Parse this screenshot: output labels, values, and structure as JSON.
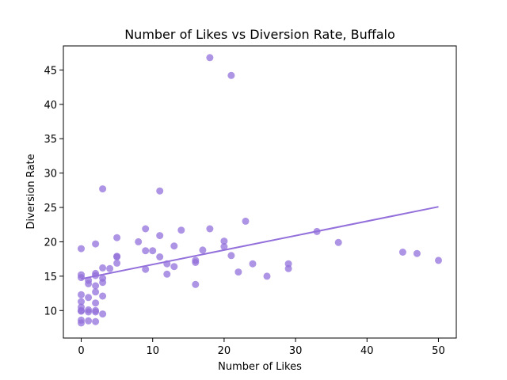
{
  "chart_data": {
    "type": "scatter",
    "title": "Number of Likes vs Diversion Rate, Buffalo",
    "xlabel": "Number of Likes",
    "ylabel": "Diversion Rate",
    "xlim": [
      -2.5,
      52.5
    ],
    "ylim": [
      6.0,
      48.5
    ],
    "xticks": [
      0,
      10,
      20,
      30,
      40,
      50
    ],
    "yticks": [
      10,
      15,
      20,
      25,
      30,
      35,
      40,
      45
    ],
    "grid": false,
    "legend": "none",
    "point_color": "#9370DB",
    "line_color": "#9370DB",
    "points": [
      {
        "x": 0,
        "y": 19.0
      },
      {
        "x": 0,
        "y": 15.2
      },
      {
        "x": 0,
        "y": 14.8
      },
      {
        "x": 0,
        "y": 12.3
      },
      {
        "x": 0,
        "y": 11.3
      },
      {
        "x": 0,
        "y": 10.5
      },
      {
        "x": 0,
        "y": 10.0
      },
      {
        "x": 0,
        "y": 9.9
      },
      {
        "x": 0,
        "y": 8.6
      },
      {
        "x": 0,
        "y": 8.2
      },
      {
        "x": 1,
        "y": 14.4
      },
      {
        "x": 1,
        "y": 13.9
      },
      {
        "x": 1,
        "y": 11.9
      },
      {
        "x": 1,
        "y": 10.1
      },
      {
        "x": 1,
        "y": 9.8
      },
      {
        "x": 1,
        "y": 8.5
      },
      {
        "x": 2,
        "y": 19.7
      },
      {
        "x": 2,
        "y": 15.4
      },
      {
        "x": 2,
        "y": 15.1
      },
      {
        "x": 2,
        "y": 13.6
      },
      {
        "x": 2,
        "y": 12.7
      },
      {
        "x": 2,
        "y": 11.1
      },
      {
        "x": 2,
        "y": 10.0
      },
      {
        "x": 2,
        "y": 9.8
      },
      {
        "x": 2,
        "y": 8.4
      },
      {
        "x": 3,
        "y": 27.7
      },
      {
        "x": 3,
        "y": 16.2
      },
      {
        "x": 3,
        "y": 14.7
      },
      {
        "x": 3,
        "y": 14.1
      },
      {
        "x": 3,
        "y": 12.1
      },
      {
        "x": 3,
        "y": 9.5
      },
      {
        "x": 4,
        "y": 16.1
      },
      {
        "x": 5,
        "y": 20.6
      },
      {
        "x": 5,
        "y": 17.9
      },
      {
        "x": 5,
        "y": 17.8
      },
      {
        "x": 5,
        "y": 16.9
      },
      {
        "x": 8,
        "y": 20.0
      },
      {
        "x": 9,
        "y": 21.9
      },
      {
        "x": 9,
        "y": 18.7
      },
      {
        "x": 9,
        "y": 16.0
      },
      {
        "x": 10,
        "y": 18.7
      },
      {
        "x": 11,
        "y": 27.4
      },
      {
        "x": 11,
        "y": 20.9
      },
      {
        "x": 11,
        "y": 17.8
      },
      {
        "x": 12,
        "y": 16.8
      },
      {
        "x": 12,
        "y": 15.3
      },
      {
        "x": 13,
        "y": 19.4
      },
      {
        "x": 13,
        "y": 16.4
      },
      {
        "x": 14,
        "y": 21.7
      },
      {
        "x": 16,
        "y": 17.3
      },
      {
        "x": 16,
        "y": 17.0
      },
      {
        "x": 16,
        "y": 13.8
      },
      {
        "x": 17,
        "y": 18.8
      },
      {
        "x": 18,
        "y": 46.8
      },
      {
        "x": 18,
        "y": 21.9
      },
      {
        "x": 20,
        "y": 20.1
      },
      {
        "x": 20,
        "y": 19.3
      },
      {
        "x": 21,
        "y": 44.2
      },
      {
        "x": 21,
        "y": 18.0
      },
      {
        "x": 22,
        "y": 15.6
      },
      {
        "x": 23,
        "y": 23.0
      },
      {
        "x": 24,
        "y": 16.8
      },
      {
        "x": 26,
        "y": 15.0
      },
      {
        "x": 29,
        "y": 16.8
      },
      {
        "x": 29,
        "y": 16.1
      },
      {
        "x": 33,
        "y": 21.5
      },
      {
        "x": 36,
        "y": 19.9
      },
      {
        "x": 45,
        "y": 18.5
      },
      {
        "x": 47,
        "y": 18.3
      },
      {
        "x": 50,
        "y": 17.3
      }
    ],
    "trendline": {
      "x": [
        0,
        50
      ],
      "y": [
        14.6,
        25.1
      ]
    }
  }
}
